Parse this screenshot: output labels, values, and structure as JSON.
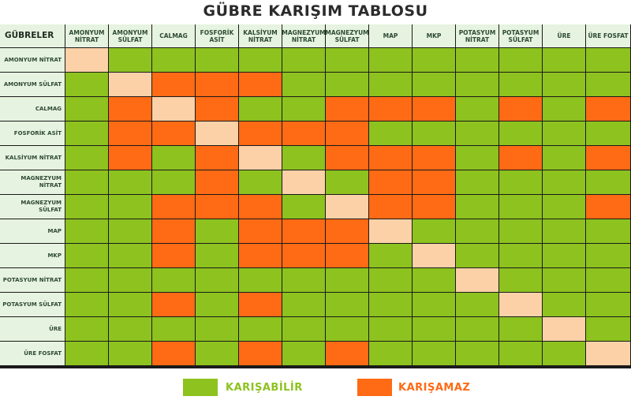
{
  "title": "GÜBRE KARIŞIM TABLOSU",
  "colors": {
    "compatible": "#8dc21f",
    "incompatible": "#ff6a14",
    "same": "#fcd1a8",
    "header_bg": "#e6f3e0"
  },
  "chart_data": {
    "type": "heatmap",
    "title": "GÜBRE KARIŞIM TABLOSU",
    "corner_label": "GÜBRELER",
    "columns": [
      "AMONYUM\nNİTRAT",
      "AMONYUM\nSÜLFAT",
      "CALMAG",
      "FOSFORİK\nASİT",
      "KALSİYUM\nNİTRAT",
      "MAGNEZYUM\nNİTRAT",
      "MAGNEZYUM\nSÜLFAT",
      "MAP",
      "MKP",
      "POTASYUM\nNİTRAT",
      "POTASYUM\nSÜLFAT",
      "ÜRE",
      "ÜRE FOSFAT"
    ],
    "rows": [
      "AMONYUM NİTRAT",
      "AMONYUM SÜLFAT",
      "CALMAG",
      "FOSFORİK ASİT",
      "KALSİYUM NİTRAT",
      "MAGNEZYUM NİTRAT",
      "MAGNEZYUM SÜLFAT",
      "MAP",
      "MKP",
      "POTASYUM NİTRAT",
      "POTASYUM SÜLFAT",
      "ÜRE",
      "ÜRE FOSFAT"
    ],
    "value_meaning": {
      "1": "KARIŞABİLİR",
      "0": "KARIŞAMAZ",
      "-1": "same fertilizer"
    },
    "values": [
      [
        -1,
        1,
        1,
        1,
        1,
        1,
        1,
        1,
        1,
        1,
        1,
        1,
        1
      ],
      [
        1,
        -1,
        0,
        0,
        0,
        1,
        1,
        1,
        1,
        1,
        1,
        1,
        1
      ],
      [
        1,
        0,
        -1,
        0,
        1,
        1,
        0,
        0,
        0,
        1,
        0,
        1,
        0
      ],
      [
        1,
        0,
        0,
        -1,
        0,
        0,
        0,
        1,
        1,
        1,
        1,
        1,
        1
      ],
      [
        1,
        0,
        1,
        0,
        -1,
        1,
        0,
        0,
        0,
        1,
        0,
        1,
        0
      ],
      [
        1,
        1,
        1,
        0,
        1,
        -1,
        1,
        0,
        0,
        1,
        1,
        1,
        1
      ],
      [
        1,
        1,
        0,
        0,
        0,
        1,
        -1,
        0,
        0,
        1,
        1,
        1,
        0
      ],
      [
        1,
        1,
        0,
        1,
        0,
        0,
        0,
        -1,
        1,
        1,
        1,
        1,
        1
      ],
      [
        1,
        1,
        0,
        1,
        0,
        0,
        0,
        1,
        -1,
        1,
        1,
        1,
        1
      ],
      [
        1,
        1,
        1,
        1,
        1,
        1,
        1,
        1,
        1,
        -1,
        1,
        1,
        1
      ],
      [
        1,
        1,
        0,
        1,
        0,
        1,
        1,
        1,
        1,
        1,
        -1,
        1,
        1
      ],
      [
        1,
        1,
        1,
        1,
        1,
        1,
        1,
        1,
        1,
        1,
        1,
        -1,
        1
      ],
      [
        1,
        1,
        0,
        1,
        0,
        1,
        0,
        1,
        1,
        1,
        1,
        1,
        -1
      ]
    ],
    "legend": [
      {
        "label": "KARIŞABİLİR",
        "color": "#8dc21f"
      },
      {
        "label": "KARIŞAMAZ",
        "color": "#ff6a14"
      }
    ]
  }
}
